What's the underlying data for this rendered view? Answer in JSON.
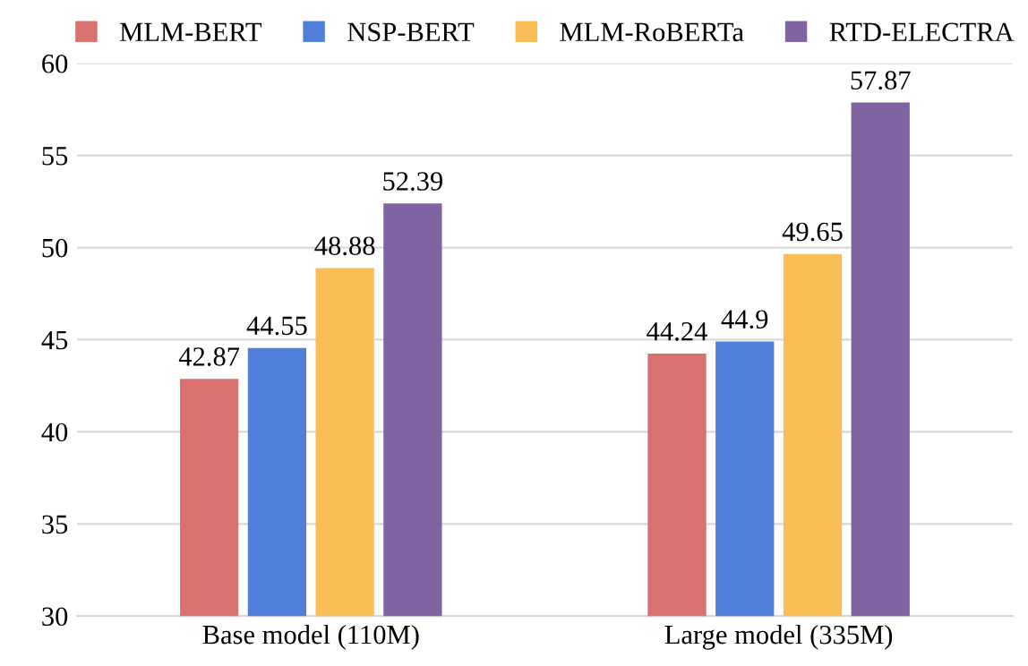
{
  "chart_data": {
    "type": "bar",
    "categories": [
      "Base model (110M)",
      "Large model (335M)"
    ],
    "series": [
      {
        "name": "MLM-BERT",
        "color": "#d9726e",
        "values": [
          42.87,
          44.24
        ]
      },
      {
        "name": "NSP-BERT",
        "color": "#4f7fd9",
        "values": [
          44.55,
          44.9
        ]
      },
      {
        "name": "MLM-RoBERTa",
        "color": "#fbbd55",
        "values": [
          48.88,
          49.65
        ]
      },
      {
        "name": "RTD-ELECTRA",
        "color": "#8064a2",
        "values": [
          52.39,
          57.87
        ]
      }
    ],
    "ylim": [
      30,
      60
    ],
    "yticks": [
      30,
      35,
      40,
      45,
      50,
      55,
      60
    ],
    "grid": "y",
    "legend": "top",
    "data_labels": true
  }
}
